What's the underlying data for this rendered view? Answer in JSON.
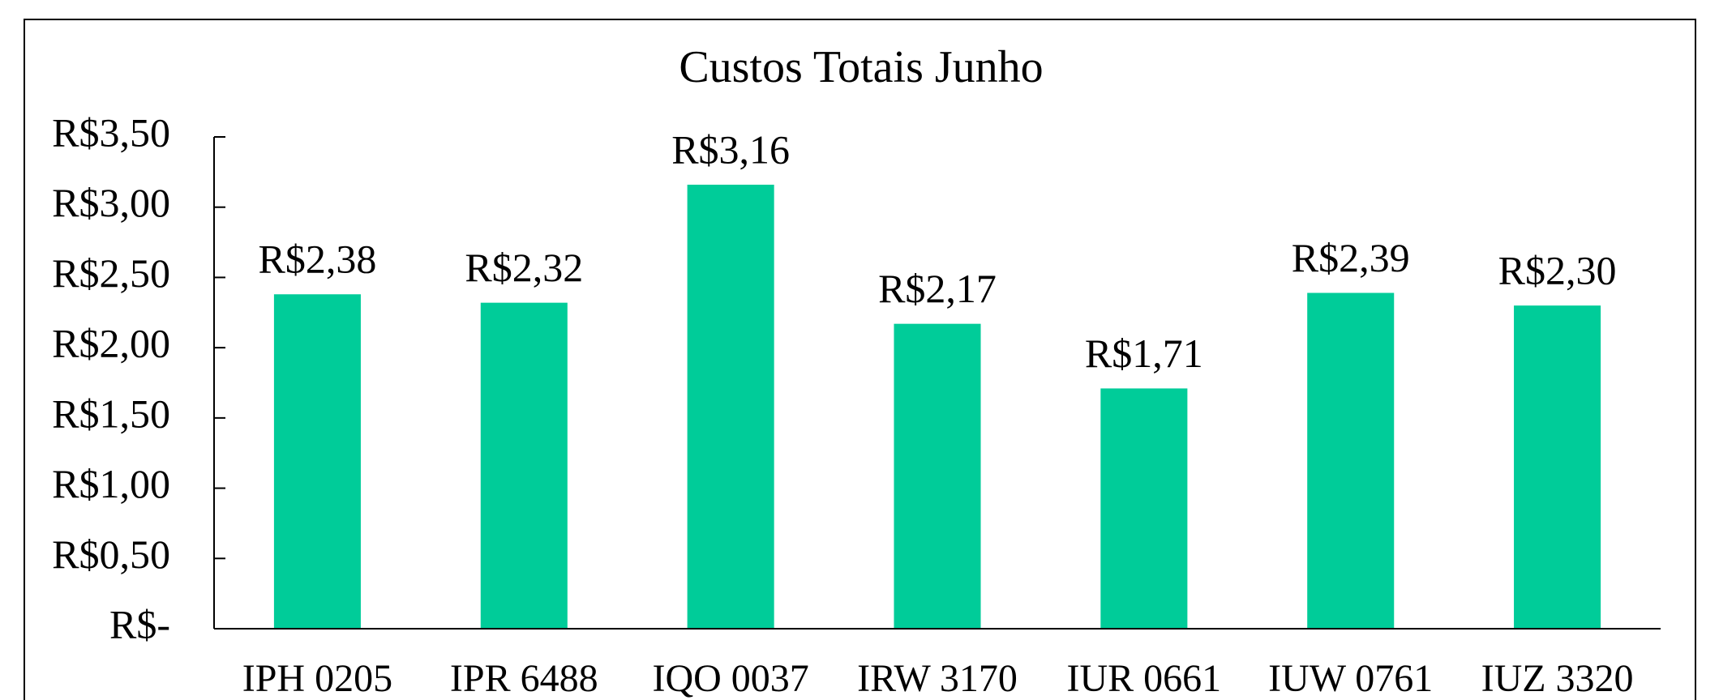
{
  "chart_data": {
    "type": "bar",
    "title": "Custos Totais Junho",
    "categories": [
      "IPH 0205",
      "IPR 6488",
      "IQO 0037",
      "IRW 3170",
      "IUR 0661",
      "IUW 0761",
      "IUZ 3320"
    ],
    "values": [
      2.38,
      2.32,
      3.16,
      2.17,
      1.71,
      2.39,
      2.3
    ],
    "value_labels": [
      "R$2,38",
      "R$2,32",
      "R$3,16",
      "R$2,17",
      "R$1,71",
      "R$2,39",
      "R$2,30"
    ],
    "color": "#00cc99",
    "ylim": [
      0,
      3.5
    ],
    "yticks": [
      {
        "value": 0,
        "label": "R$-"
      },
      {
        "value": 0.5,
        "label": "R$0,50"
      },
      {
        "value": 1,
        "label": "R$1,00"
      },
      {
        "value": 1.5,
        "label": "R$1,50"
      },
      {
        "value": 2,
        "label": "R$2,00"
      },
      {
        "value": 2.5,
        "label": "R$2,50"
      },
      {
        "value": 3,
        "label": "R$3,00"
      },
      {
        "value": 3.5,
        "label": "R$3,50"
      }
    ],
    "grid": false
  }
}
